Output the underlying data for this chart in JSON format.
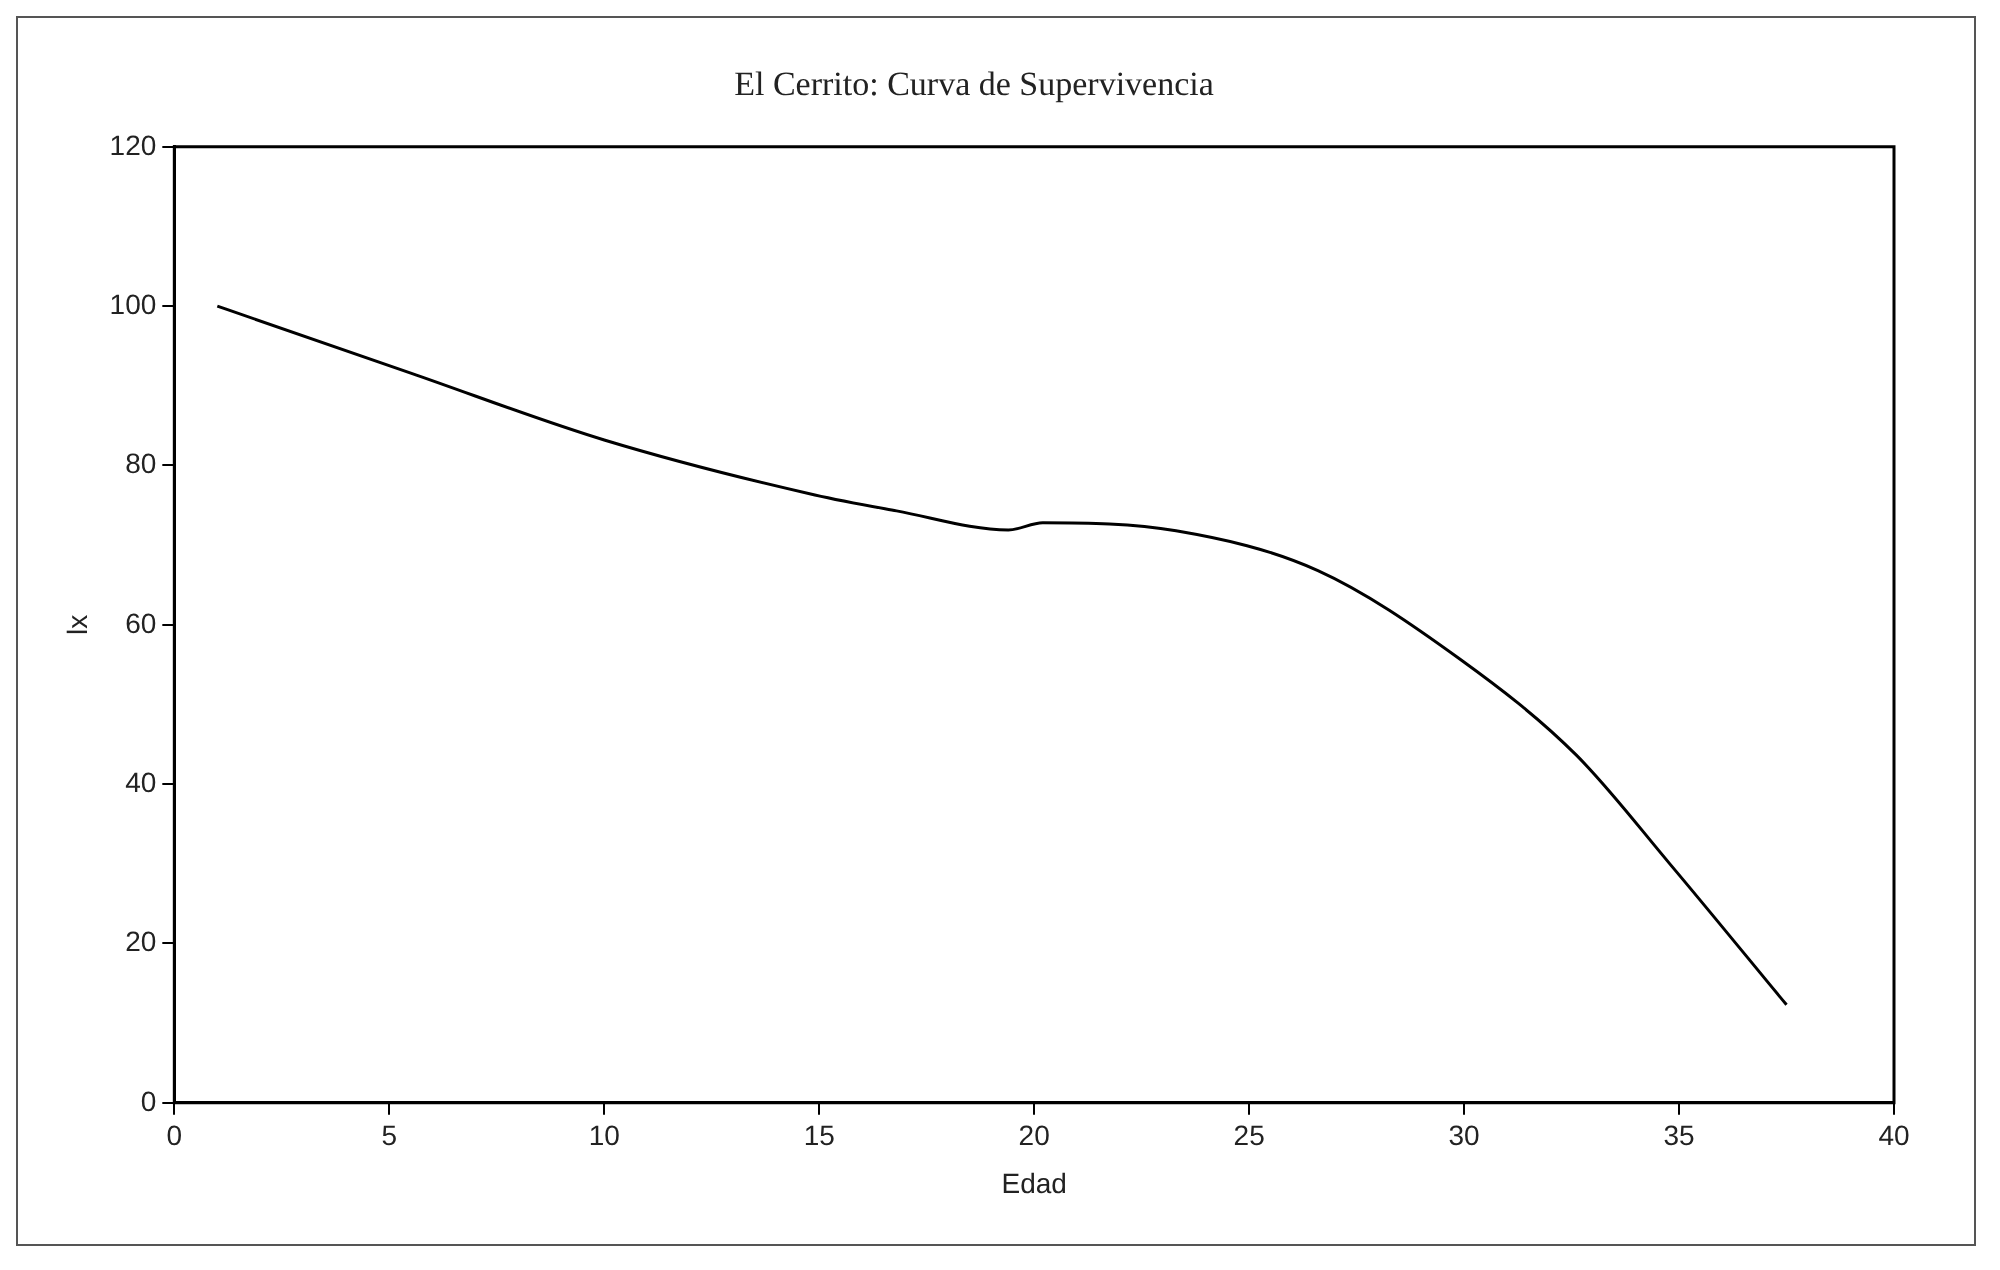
{
  "chart_data": {
    "type": "line",
    "title": "El Cerrito: Curva de Supervivencia",
    "xlabel": "Edad",
    "ylabel": "lx",
    "series": [
      {
        "color": "#000000",
        "x": [
          1,
          5.5,
          10,
          14.9,
          16.8,
          19.4,
          20.2,
          23.3,
          26.6,
          29.9,
          32.6,
          34.8,
          37.5
        ],
        "values": [
          100,
          91.6,
          83.2,
          76.3,
          74.3,
          71.9,
          72.8,
          71.8,
          66.8,
          55.7,
          43.7,
          29.9,
          12.3
        ]
      }
    ],
    "xlim": [
      0,
      40
    ],
    "xticks": [
      0,
      5,
      10,
      15,
      20,
      25,
      30,
      35,
      40
    ],
    "ylim": [
      0,
      120
    ],
    "yticks": [
      0,
      20,
      40,
      60,
      80,
      100,
      120
    ],
    "grid": false,
    "legend": false,
    "marker": "none",
    "line_style": "solid"
  }
}
